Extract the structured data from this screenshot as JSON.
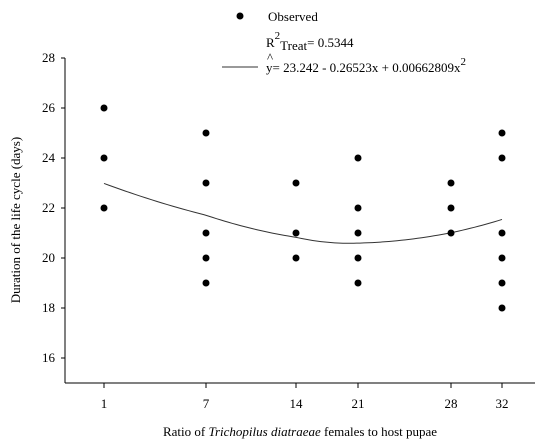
{
  "chart_data": {
    "type": "scatter",
    "xlabel": {
      "prefix": "Ratio of ",
      "italic": "Trichopilus diatraeae",
      "suffix": " females to host pupae"
    },
    "ylabel": "Duration of the life cycle (days)",
    "x_ticks": [
      "1",
      "7",
      "14",
      "21",
      "28",
      "32"
    ],
    "y_ticks": [
      "16",
      "18",
      "20",
      "22",
      "24",
      "26",
      "28"
    ],
    "ylim": [
      15,
      28
    ],
    "grid": false,
    "legend_position": "top-right",
    "legend": {
      "observed_label": "Observed",
      "r2": {
        "base": "R",
        "sup": "2",
        "sub": "Treat",
        "value": "= 0.5344"
      },
      "equation": {
        "hat": "^",
        "var": "y",
        "text": "= 23.242 - 0.26523x + 0.00662809x",
        "sup": "2"
      }
    },
    "series": [
      {
        "name": "Observed",
        "points": [
          {
            "x": 1,
            "y": 26
          },
          {
            "x": 1,
            "y": 24
          },
          {
            "x": 1,
            "y": 22
          },
          {
            "x": 7,
            "y": 25
          },
          {
            "x": 7,
            "y": 23
          },
          {
            "x": 7,
            "y": 21
          },
          {
            "x": 7,
            "y": 20
          },
          {
            "x": 7,
            "y": 19
          },
          {
            "x": 14,
            "y": 23
          },
          {
            "x": 14,
            "y": 21
          },
          {
            "x": 14,
            "y": 20
          },
          {
            "x": 21,
            "y": 24
          },
          {
            "x": 21,
            "y": 22
          },
          {
            "x": 21,
            "y": 21
          },
          {
            "x": 21,
            "y": 20
          },
          {
            "x": 21,
            "y": 19
          },
          {
            "x": 28,
            "y": 23
          },
          {
            "x": 28,
            "y": 22
          },
          {
            "x": 28,
            "y": 21
          },
          {
            "x": 32,
            "y": 25
          },
          {
            "x": 32,
            "y": 24
          },
          {
            "x": 32,
            "y": 21
          },
          {
            "x": 32,
            "y": 20
          },
          {
            "x": 32,
            "y": 19
          },
          {
            "x": 32,
            "y": 18
          }
        ]
      }
    ],
    "fit": {
      "type": "quadratic",
      "coefficients": [
        23.242,
        -0.26523,
        0.00662809
      ],
      "x_range": [
        1,
        32
      ]
    }
  }
}
